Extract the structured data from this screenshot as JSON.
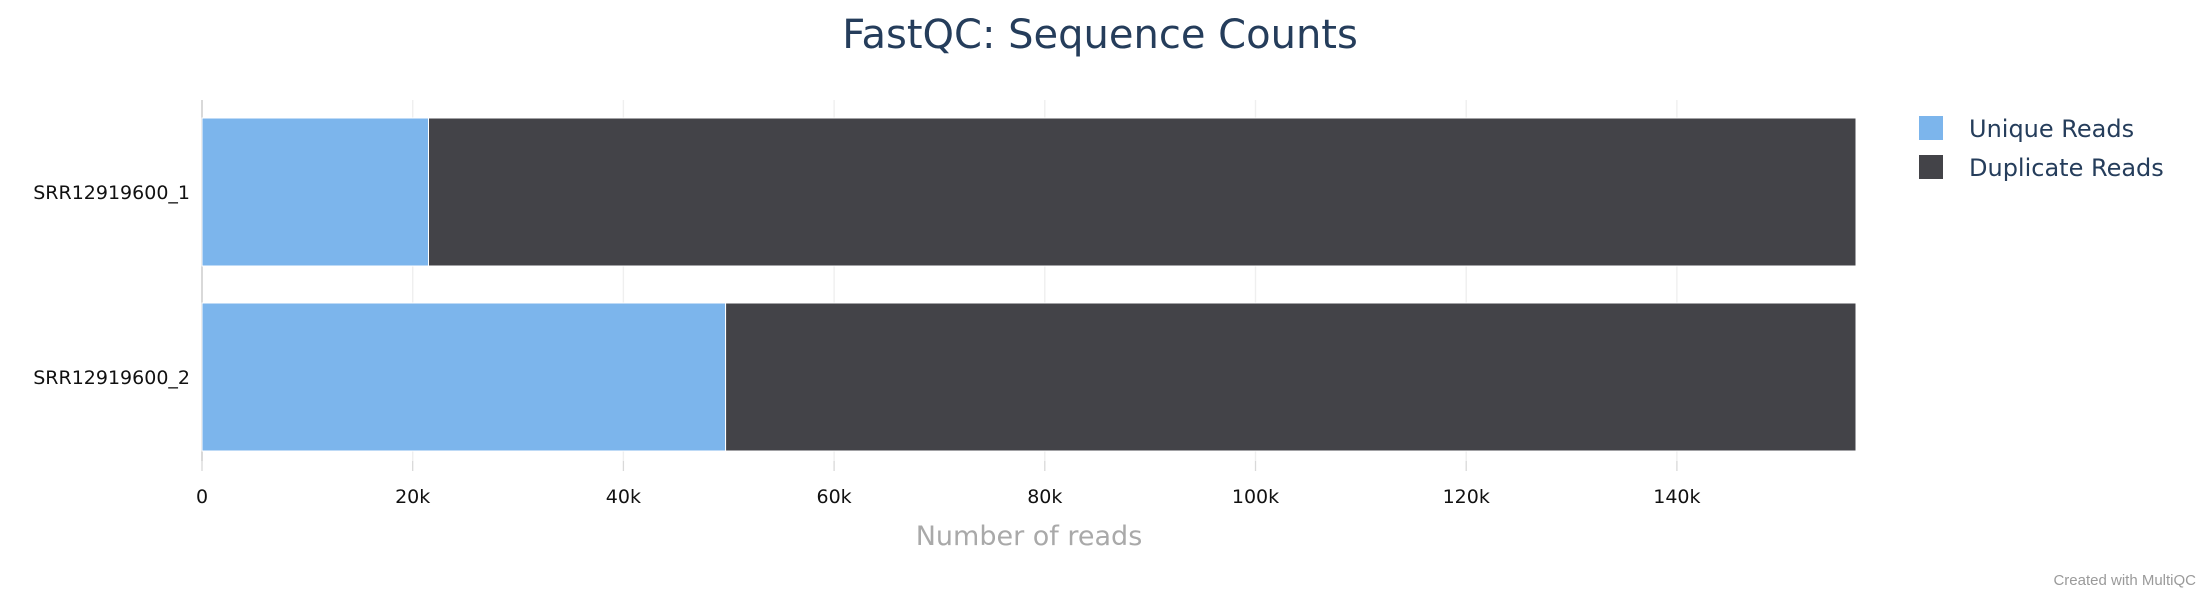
{
  "chart_data": {
    "type": "bar",
    "orientation": "horizontal",
    "stacked": true,
    "title": "FastQC: Sequence Counts",
    "xlabel": "Number of reads",
    "ylabel": "",
    "categories": [
      "SRR12919600_1",
      "SRR12919600_2"
    ],
    "series": [
      {
        "name": "Unique Reads",
        "color": "#7cb5ec",
        "values": [
          21500,
          49700
        ]
      },
      {
        "name": "Duplicate Reads",
        "color": "#434348",
        "values": [
          135500,
          107300
        ]
      }
    ],
    "xlim": [
      0,
      157000
    ],
    "x_ticks": [
      0,
      20000,
      40000,
      60000,
      80000,
      100000,
      120000,
      140000
    ],
    "x_tick_labels": [
      "0",
      "20k",
      "40k",
      "60k",
      "80k",
      "100k",
      "120k",
      "140k"
    ],
    "grid": true,
    "legend_position": "top-right",
    "credit": "Created with MultiQC"
  }
}
